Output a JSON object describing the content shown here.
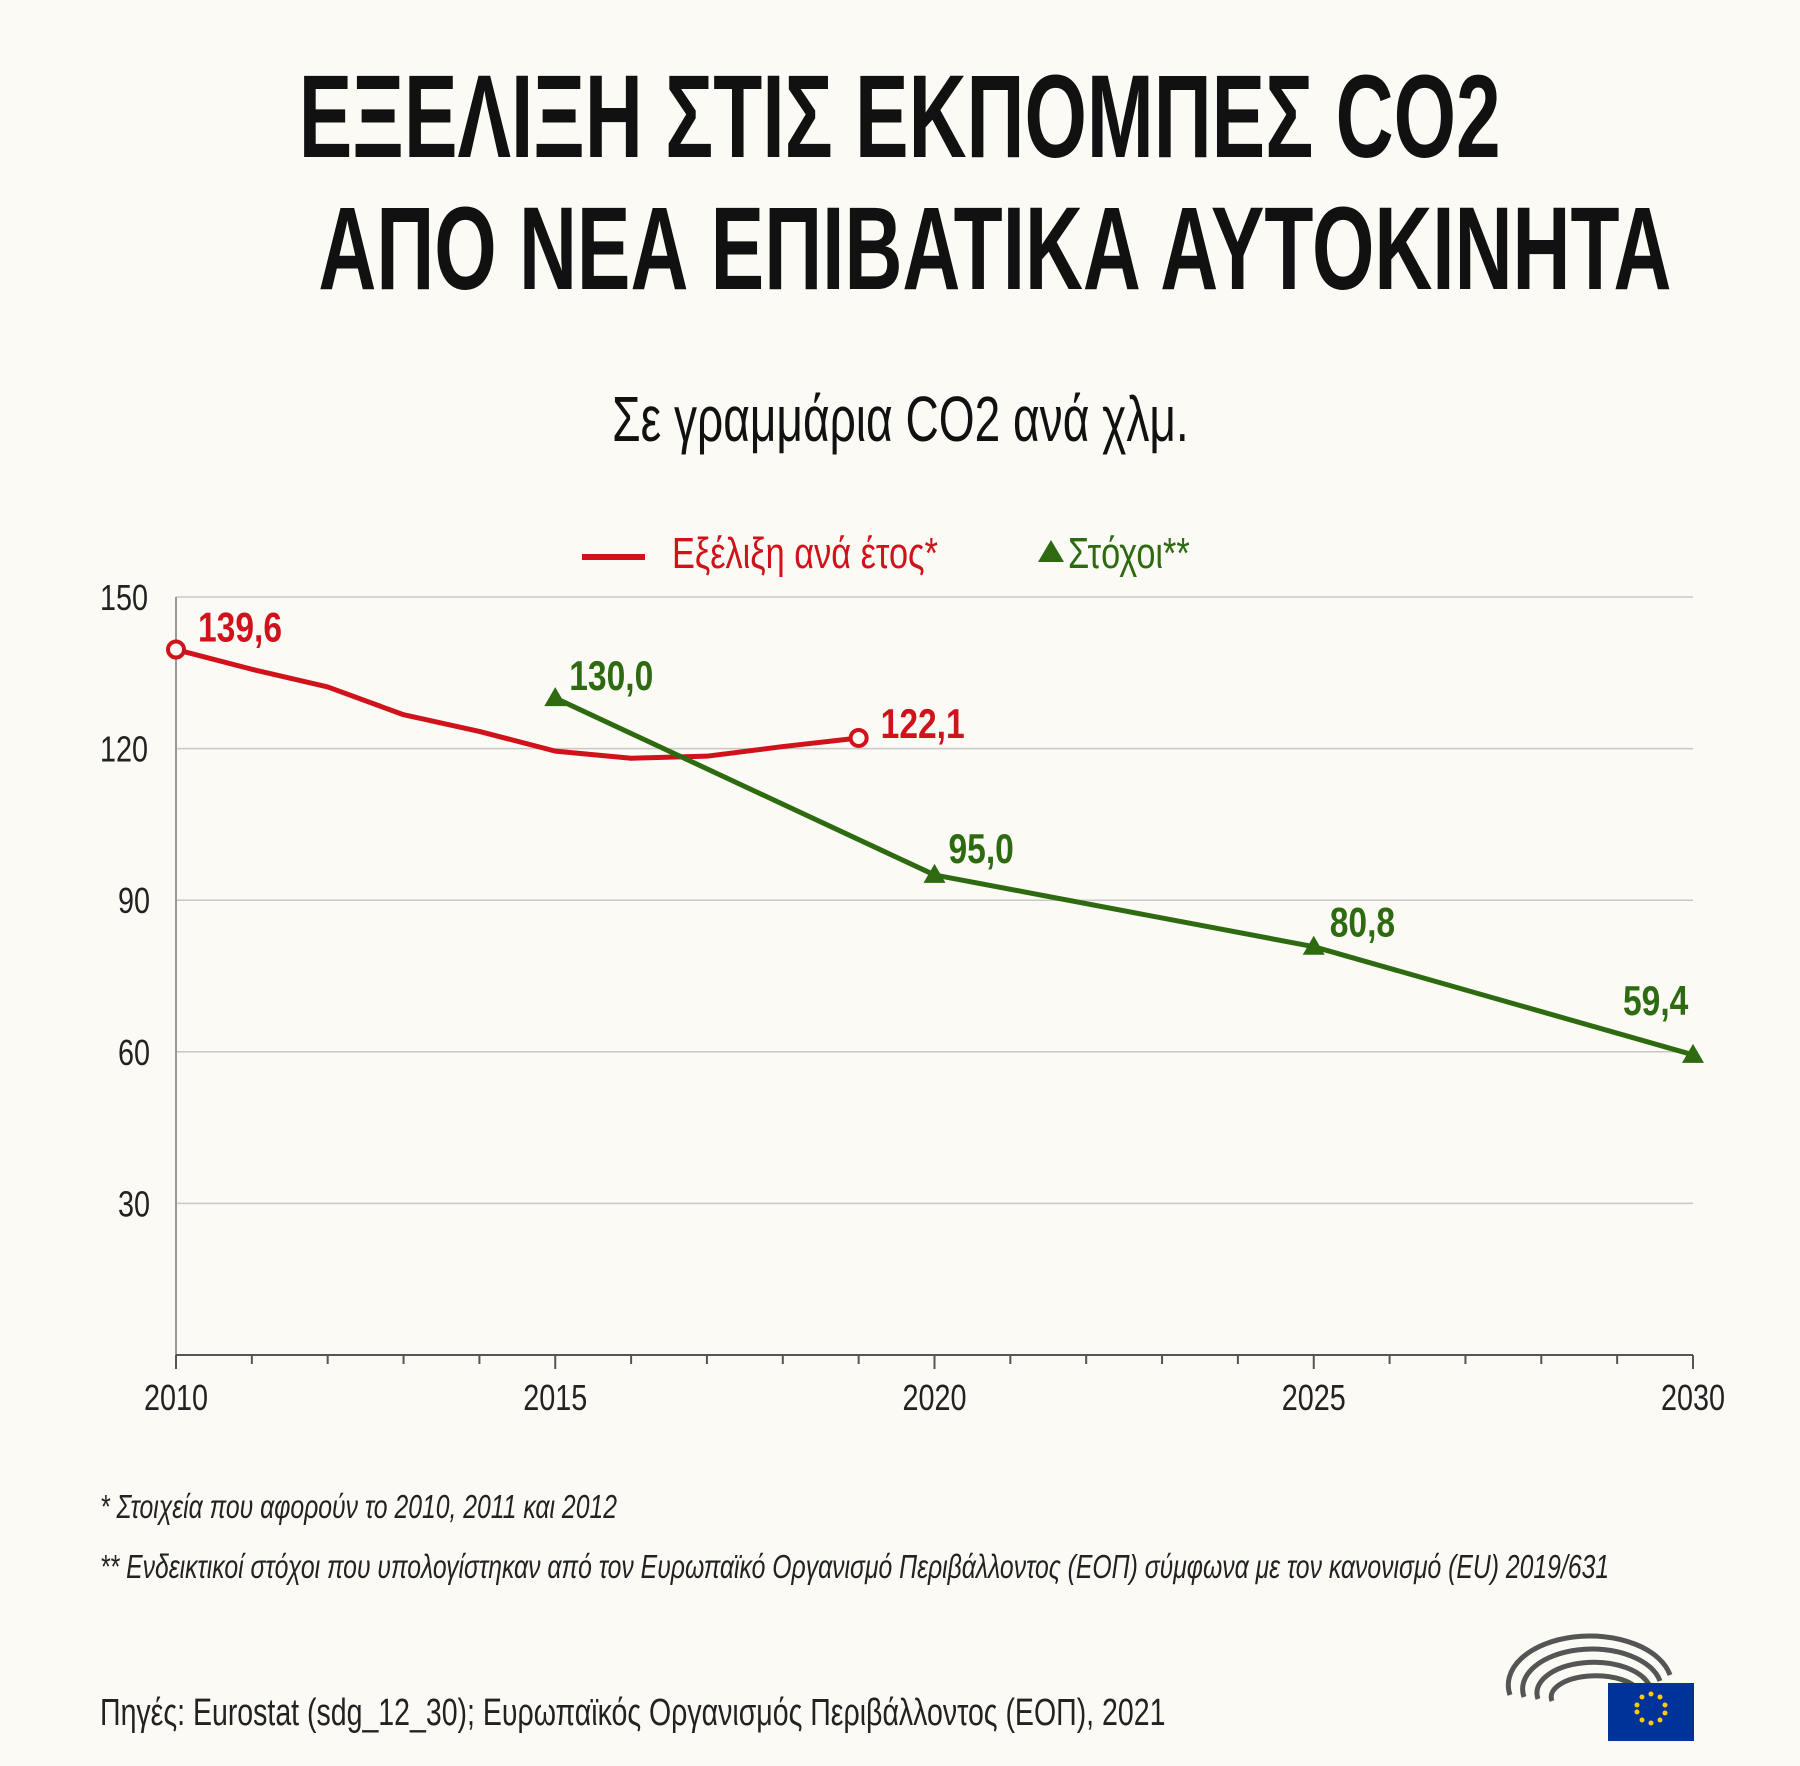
{
  "title_line1": "ΕΞΕΛΙΞΗ ΣΤΙΣ ΕΚΠΟΜΠΕΣ CO2",
  "title_line2": "ΑΠΟ ΝΕΑ ΕΠΙΒΑΤΙΚΑ ΑΥΤΟΚΙΝΗΤΑ",
  "subtitle": "Σε γραμμάρια CO2 ανά χλμ.",
  "footnote1": "* Στοιχεία που αφορούν το 2010, 2011 και 2012",
  "footnote2": "** Ενδεικτικοί στόχοι που υπολογίστηκαν από τον Ευρωπαϊκό Οργανισμό Περιβάλλοντος (ΕΟΠ) σύμφωνα με τον κανονισμό (EU) 2019/631",
  "source": "Πηγές: Eurostat (sdg_12_30); Ευρωπαϊκός Οργανισμός Περιβάλλοντος (ΕΟΠ), 2021",
  "chart_data": {
    "type": "line",
    "title": "ΕΞΕΛΙΞΗ ΣΤΙΣ ΕΚΠΟΜΠΕΣ CO2 ΑΠΟ ΝΕΑ ΕΠΙΒΑΤΙΚΑ ΑΥΤΟΚΙΝΗΤΑ",
    "ylabel": "Σε γραμμάρια CO2 ανά χλμ.",
    "xlim": [
      2010,
      2030
    ],
    "ylim": [
      0,
      150
    ],
    "xticks": [
      "2010",
      "2015",
      "2020",
      "2025",
      "2030"
    ],
    "yticks": [
      "30",
      "60",
      "90",
      "120",
      "150"
    ],
    "grid": true,
    "legend_position": "top",
    "series": [
      {
        "name": "Εξέλιξη ανά έτος*",
        "color": "#d0121b",
        "x": [
          2010,
          2011,
          2012,
          2013,
          2014,
          2015,
          2016,
          2017,
          2018,
          2019
        ],
        "y": [
          139.6,
          135.7,
          132.2,
          126.7,
          123.4,
          119.5,
          118.1,
          118.5,
          120.4,
          122.1
        ],
        "labels": [
          {
            "x": 2010,
            "text": "139,6"
          },
          {
            "x": 2019,
            "text": "122,1"
          }
        ]
      },
      {
        "name": "Στόχοι**",
        "color": "#2e6a10",
        "x": [
          2015,
          2020,
          2025,
          2030
        ],
        "y": [
          130.0,
          95.0,
          80.8,
          59.4
        ],
        "labels": [
          {
            "x": 2015,
            "text": "130,0"
          },
          {
            "x": 2020,
            "text": "95,0"
          },
          {
            "x": 2025,
            "text": "80,8"
          },
          {
            "x": 2030,
            "text": "59,4"
          }
        ]
      }
    ]
  }
}
